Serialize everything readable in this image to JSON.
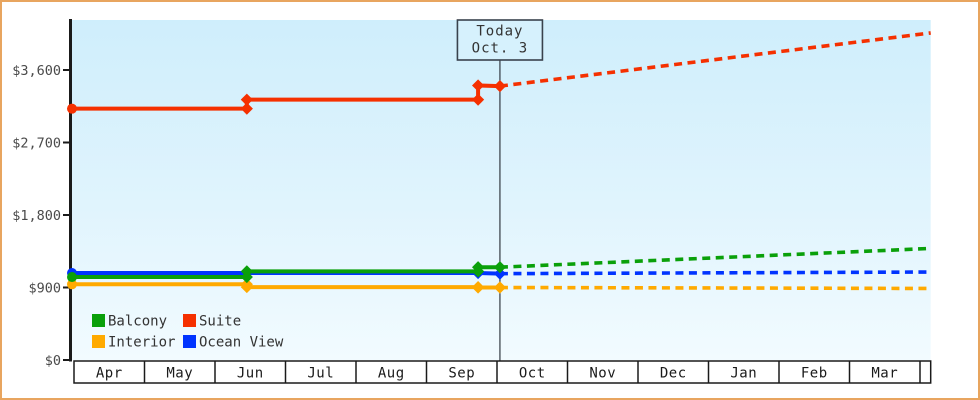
{
  "chart_data": {
    "type": "line",
    "title": "",
    "x_axis": {
      "categories": [
        "Apr",
        "May",
        "Jun",
        "Jul",
        "Aug",
        "Sep",
        "Oct",
        "Nov",
        "Dec",
        "Jan",
        "Feb",
        "Mar"
      ],
      "unit": "months from Apr 1",
      "range": [
        0,
        12.18
      ],
      "grid": false
    },
    "y_axis": {
      "ticks": [
        {
          "label": "$0",
          "value": 0
        },
        {
          "label": "$900",
          "value": 900
        },
        {
          "label": "$1,800",
          "value": 1800
        },
        {
          "label": "$2,700",
          "value": 2700
        },
        {
          "label": "$3,600",
          "value": 3600
        }
      ],
      "range": [
        0,
        4220
      ],
      "grid": false
    },
    "today_marker": {
      "line1": "Today",
      "line2": "Oct. 3",
      "x": 6.07
    },
    "series": [
      {
        "name": "Interior",
        "color": "#ffaa00",
        "solid": [
          [
            0,
            940
          ],
          [
            2.48,
            940
          ],
          [
            2.48,
            905
          ],
          [
            5.76,
            905
          ],
          [
            5.76,
            900
          ],
          [
            6.07,
            900
          ]
        ],
        "dashed": [
          [
            6.07,
            900
          ],
          [
            12.18,
            888
          ]
        ]
      },
      {
        "name": "Ocean View",
        "color": "#0033ff",
        "solid": [
          [
            0,
            1080
          ],
          [
            5.76,
            1080
          ],
          [
            6.07,
            1072
          ]
        ],
        "dashed": [
          [
            6.07,
            1072
          ],
          [
            12.18,
            1092
          ]
        ]
      },
      {
        "name": "Balcony",
        "color": "#0aa00a",
        "solid": [
          [
            0,
            1030
          ],
          [
            2.48,
            1030
          ],
          [
            2.48,
            1100
          ],
          [
            5.76,
            1100
          ],
          [
            5.76,
            1152
          ],
          [
            6.07,
            1152
          ]
        ],
        "dashed": [
          [
            6.07,
            1152
          ],
          [
            12.18,
            1385
          ]
        ]
      },
      {
        "name": "Suite",
        "color": "#f53000",
        "solid": [
          [
            0,
            3120
          ],
          [
            2.48,
            3120
          ],
          [
            2.48,
            3232
          ],
          [
            5.76,
            3232
          ],
          [
            5.76,
            3408
          ],
          [
            6.07,
            3400
          ]
        ],
        "dashed": [
          [
            6.07,
            3400
          ],
          [
            12.18,
            4060
          ]
        ]
      }
    ],
    "legend": [
      {
        "label": "Balcony",
        "color": "#0aa00a"
      },
      {
        "label": "Suite",
        "color": "#f53000"
      },
      {
        "label": "Interior",
        "color": "#ffaa00"
      },
      {
        "label": "Ocean View",
        "color": "#0033ff"
      }
    ],
    "legend_position": "bottom-left-inside"
  },
  "style": {
    "frame_border": "#e8a55f",
    "page_background": "#ffffff",
    "plot_bg_top": "#cfeefc",
    "plot_bg_mid": "#e0f4fd",
    "plot_bg_bottom": "#f2fbff",
    "axis_color": "#1a1a1a",
    "tick_text_color": "#4a4a4a",
    "month_text_color": "#1a1a1a",
    "month_cell_fill": "#ffffff",
    "legend_text_color": "#333333",
    "today_line_color": "#333a42",
    "today_box_fill": "#d6f1fd",
    "today_box_border": "#39424d",
    "today_text_color": "#333333"
  }
}
